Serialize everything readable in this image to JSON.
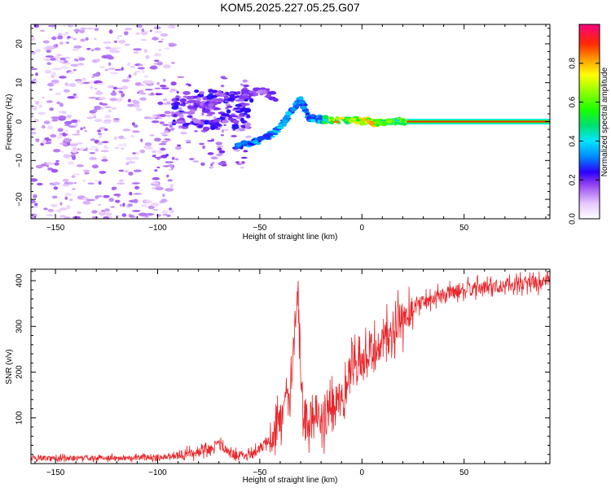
{
  "title": "KOM5.2025.227.05.25.G07",
  "colors": {
    "snr_line": "#e8262a",
    "scatter_purple": "#9b55e8",
    "scatter_blue": "#3a12d8",
    "axis": "#000000"
  },
  "chart_data": [
    {
      "type": "heatmap",
      "title": "",
      "xlabel": "Height of straight line (km)",
      "ylabel": "Frequency (Hz)",
      "xlim": [
        -162,
        92
      ],
      "ylim": [
        -25,
        25
      ],
      "xticks": [
        -150,
        -100,
        -50,
        0,
        50
      ],
      "yticks": [
        -20,
        -10,
        0,
        10,
        20
      ],
      "colorbar": {
        "label": "Normalized spectral amplitude",
        "ticks": [
          0.0,
          0.2,
          0.4,
          0.6,
          0.8
        ],
        "tick_labels": [
          "0.0",
          "0.2",
          "0.4",
          "0.6",
          "0.8"
        ],
        "range": [
          0,
          1
        ]
      },
      "features": {
        "noise_region_km": [
          -162,
          -98
        ],
        "noise_amplitude": 0.1,
        "signal_track": [
          {
            "x": -62,
            "y": -6.5,
            "a": 0.3
          },
          {
            "x": -55,
            "y": -5.8,
            "a": 0.3
          },
          {
            "x": -48,
            "y": -4.5,
            "a": 0.32
          },
          {
            "x": -42,
            "y": -2.5,
            "a": 0.38
          },
          {
            "x": -38,
            "y": 0,
            "a": 0.33
          },
          {
            "x": -34,
            "y": 3,
            "a": 0.3
          },
          {
            "x": -30,
            "y": 6,
            "a": 0.3
          },
          {
            "x": -26,
            "y": 1,
            "a": 0.3
          },
          {
            "x": -20,
            "y": 0.5,
            "a": 0.35
          },
          {
            "x": -13,
            "y": 0.3,
            "a": 0.7
          },
          {
            "x": -5,
            "y": 0.5,
            "a": 0.55
          },
          {
            "x": 2,
            "y": 0.1,
            "a": 0.75
          },
          {
            "x": 10,
            "y": -0.5,
            "a": 0.6
          },
          {
            "x": 17,
            "y": 0.2,
            "a": 0.5
          },
          {
            "x": 21,
            "y": 0,
            "a": 0.6
          }
        ],
        "upper_arc": [
          {
            "x": -90,
            "y": 2,
            "a": 0.12
          },
          {
            "x": -80,
            "y": 4,
            "a": 0.18
          },
          {
            "x": -70,
            "y": 6,
            "a": 0.2
          },
          {
            "x": -60,
            "y": 7,
            "a": 0.22
          },
          {
            "x": -50,
            "y": 8,
            "a": 0.15
          },
          {
            "x": -40,
            "y": 6,
            "a": 0.18
          }
        ],
        "steady_line": {
          "x_start": 22,
          "x_end": 92,
          "y": 0,
          "amplitude": 0.9
        }
      }
    },
    {
      "type": "line",
      "title": "",
      "xlabel": "Height of straight line (km)",
      "ylabel": "SNR (v/v)",
      "xlim": [
        -162,
        92
      ],
      "ylim": [
        0,
        425
      ],
      "xticks": [
        -150,
        -100,
        -50,
        0,
        50
      ],
      "yticks": [
        100,
        200,
        300,
        400
      ],
      "series": [
        {
          "name": "SNR",
          "x": [
            -162,
            -140,
            -120,
            -100,
            -90,
            -80,
            -75,
            -70,
            -65,
            -60,
            -55,
            -50,
            -45,
            -40,
            -35,
            -33,
            -31,
            -30,
            -28,
            -25,
            -20,
            -15,
            -10,
            -5,
            0,
            5,
            10,
            15,
            20,
            25,
            30,
            40,
            50,
            60,
            70,
            80,
            92
          ],
          "y": [
            12,
            12,
            13,
            14,
            18,
            24,
            32,
            45,
            22,
            18,
            22,
            30,
            55,
            90,
            140,
            270,
            340,
            180,
            90,
            95,
            90,
            120,
            160,
            200,
            215,
            235,
            260,
            290,
            315,
            340,
            355,
            370,
            380,
            385,
            390,
            395,
            398
          ]
        }
      ]
    }
  ]
}
